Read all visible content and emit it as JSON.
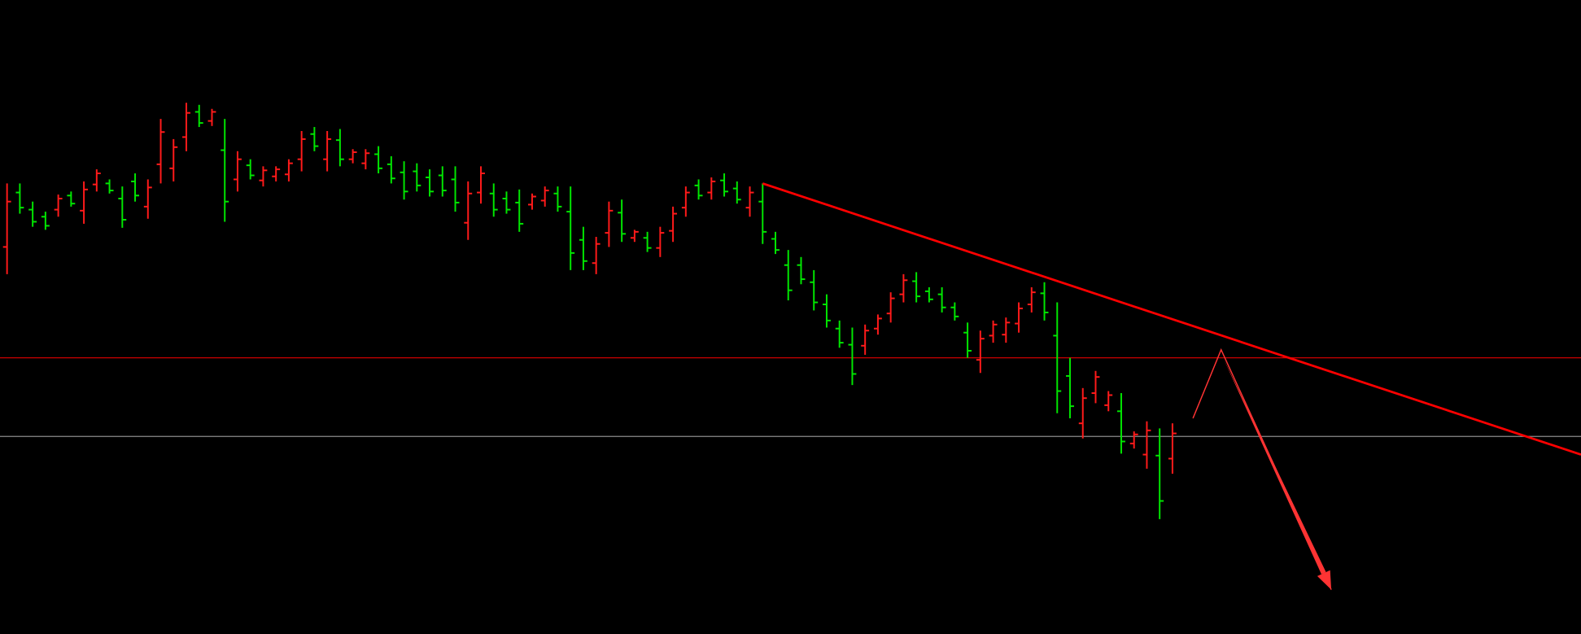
{
  "chart_data": {
    "type": "ohlc",
    "background": "#000000",
    "up_color": "#ff1a1a",
    "down_color": "#00e600",
    "xlim": [
      -0.55,
      122.9
    ],
    "ylim": [
      0,
      629
    ],
    "open": [
      384,
      438,
      421,
      414,
      421,
      435,
      420,
      446,
      447,
      432,
      449,
      424,
      466,
      462,
      493,
      518,
      509,
      480,
      451,
      465,
      450,
      454,
      456,
      471,
      496,
      471,
      490,
      471,
      467,
      476,
      466,
      458,
      459,
      453,
      455,
      451,
      408,
      438,
      437,
      432,
      428,
      426,
      430,
      437,
      419,
      391,
      368,
      398,
      418,
      393,
      393,
      383,
      400,
      423,
      445,
      438,
      450,
      442,
      423,
      429,
      392,
      366,
      366,
      349,
      327,
      303,
      287,
      286,
      303,
      318,
      337,
      350,
      340,
      337,
      324,
      299,
      272,
      296,
      297,
      308,
      327,
      338,
      296,
      256,
      209,
      239,
      227,
      221,
      189,
      178,
      177,
      174
    ],
    "high": [
      447,
      447,
      429,
      419,
      436,
      439,
      449,
      461,
      451,
      444,
      457,
      451,
      511,
      491,
      527,
      525,
      521,
      511,
      479,
      471,
      464,
      464,
      471,
      499,
      503,
      499,
      501,
      481,
      481,
      484,
      474,
      469,
      467,
      461,
      464,
      464,
      449,
      464,
      447,
      439,
      441,
      437,
      444,
      444,
      444,
      404,
      394,
      429,
      431,
      401,
      399,
      404,
      424,
      444,
      451,
      453,
      457,
      449,
      444,
      447,
      399,
      381,
      374,
      361,
      337,
      311,
      304,
      307,
      317,
      339,
      357,
      359,
      344,
      344,
      329,
      309,
      301,
      311,
      314,
      329,
      344,
      349,
      329,
      274,
      244,
      261,
      241,
      239,
      201,
      211,
      204,
      209
    ],
    "low": [
      357,
      417,
      404,
      401,
      414,
      424,
      407,
      439,
      437,
      403,
      429,
      412,
      447,
      449,
      479,
      503,
      504,
      409,
      439,
      451,
      444,
      449,
      449,
      459,
      479,
      459,
      464,
      467,
      461,
      457,
      447,
      431,
      439,
      434,
      434,
      419,
      391,
      427,
      414,
      417,
      399,
      421,
      424,
      419,
      361,
      361,
      357,
      384,
      389,
      389,
      379,
      374,
      389,
      414,
      431,
      431,
      434,
      427,
      414,
      387,
      377,
      331,
      347,
      321,
      304,
      284,
      247,
      277,
      297,
      309,
      329,
      329,
      329,
      319,
      311,
      274,
      259,
      289,
      289,
      299,
      319,
      311,
      219,
      214,
      194,
      229,
      221,
      179,
      184,
      164,
      114,
      159
    ],
    "close": [
      429,
      423,
      409,
      405,
      432,
      427,
      441,
      457,
      440,
      411,
      435,
      443,
      498,
      483,
      517,
      507,
      518,
      429,
      471,
      455,
      460,
      461,
      467,
      491,
      484,
      491,
      471,
      478,
      477,
      462,
      452,
      439,
      445,
      439,
      440,
      428,
      437,
      457,
      421,
      421,
      407,
      434,
      440,
      424,
      378,
      370,
      387,
      420,
      397,
      399,
      383,
      398,
      417,
      438,
      435,
      449,
      439,
      431,
      438,
      399,
      381,
      341,
      352,
      329,
      311,
      289,
      258,
      301,
      313,
      333,
      351,
      335,
      332,
      324,
      315,
      281,
      293,
      307,
      309,
      323,
      339,
      319,
      241,
      226,
      234,
      255,
      237,
      191,
      198,
      202,
      132,
      199
    ],
    "horizontal_lines": [
      {
        "value": 274,
        "color": "#cc0000"
      },
      {
        "value": 196,
        "color": "#8c8c8c"
      }
    ],
    "trendline": {
      "x": [
        59,
        122.9
      ],
      "y": [
        447,
        178
      ],
      "color": "#ff0000"
    },
    "arrow": {
      "x": [
        92.6,
        94.8,
        103.4
      ],
      "y": [
        214,
        282,
        44
      ],
      "color": "#ff3333"
    }
  }
}
